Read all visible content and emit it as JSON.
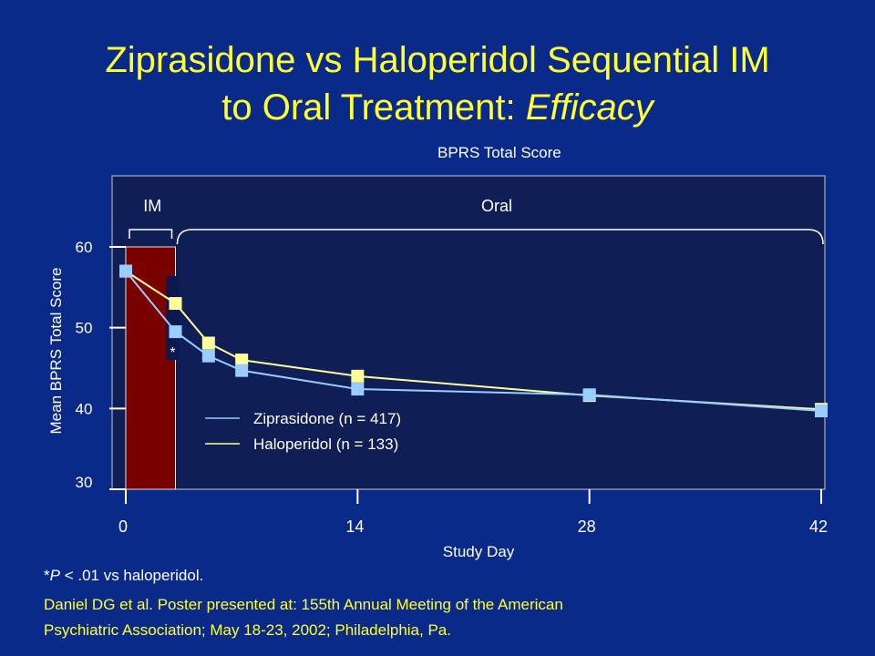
{
  "slide": {
    "title_line1": "Ziprasidone vs Haloperidol Sequential IM",
    "title_line2_plain": "to Oral Treatment: ",
    "title_line2_italic": "Efficacy",
    "footnote_p": "P",
    "footnote_prefix": "*",
    "footnote_rest": " < .01 vs haloperidol.",
    "citation_line1": "Daniel DG et al. Poster presented at: 155th Annual Meeting of the American",
    "citation_line2": "Psychiatric Association; May 18-23, 2002; Philadelphia, Pa.",
    "colors": {
      "background": "#0a2a8a",
      "plot_area": "#0f1f55",
      "title": "#ffff33",
      "im_bar": "#7a0000",
      "ziprasidone": "#99ccff",
      "haloperidol": "#ffff99"
    }
  },
  "chart_data": {
    "type": "line",
    "title": "BPRS Total Score",
    "xlabel": "Study Day",
    "ylabel": "Mean BPRS Total Score",
    "xlim": [
      0,
      42
    ],
    "ylim": [
      30,
      60
    ],
    "xticks": [
      0,
      14,
      28,
      42
    ],
    "yticks": [
      30,
      40,
      50,
      60
    ],
    "phases": [
      {
        "label": "IM",
        "x": [
          0,
          3
        ]
      },
      {
        "label": "Oral",
        "x": [
          3,
          42
        ]
      }
    ],
    "series": [
      {
        "name": "Ziprasidone (n = 417)",
        "color": "#99ccff",
        "x": [
          0,
          3,
          5,
          7,
          14,
          28,
          42
        ],
        "y": [
          57,
          49.5,
          46.5,
          44.7,
          42.4,
          41.7,
          39.7
        ]
      },
      {
        "name": "Haloperidol (n = 133)",
        "color": "#ffff99",
        "x": [
          0,
          3,
          5,
          7,
          14,
          28,
          42
        ],
        "y": [
          57,
          53,
          48.1,
          46,
          44,
          41.6,
          39.9
        ]
      }
    ],
    "annotations": [
      {
        "text": "*",
        "x": 3
      }
    ],
    "grid": false,
    "legend_position": "center"
  }
}
